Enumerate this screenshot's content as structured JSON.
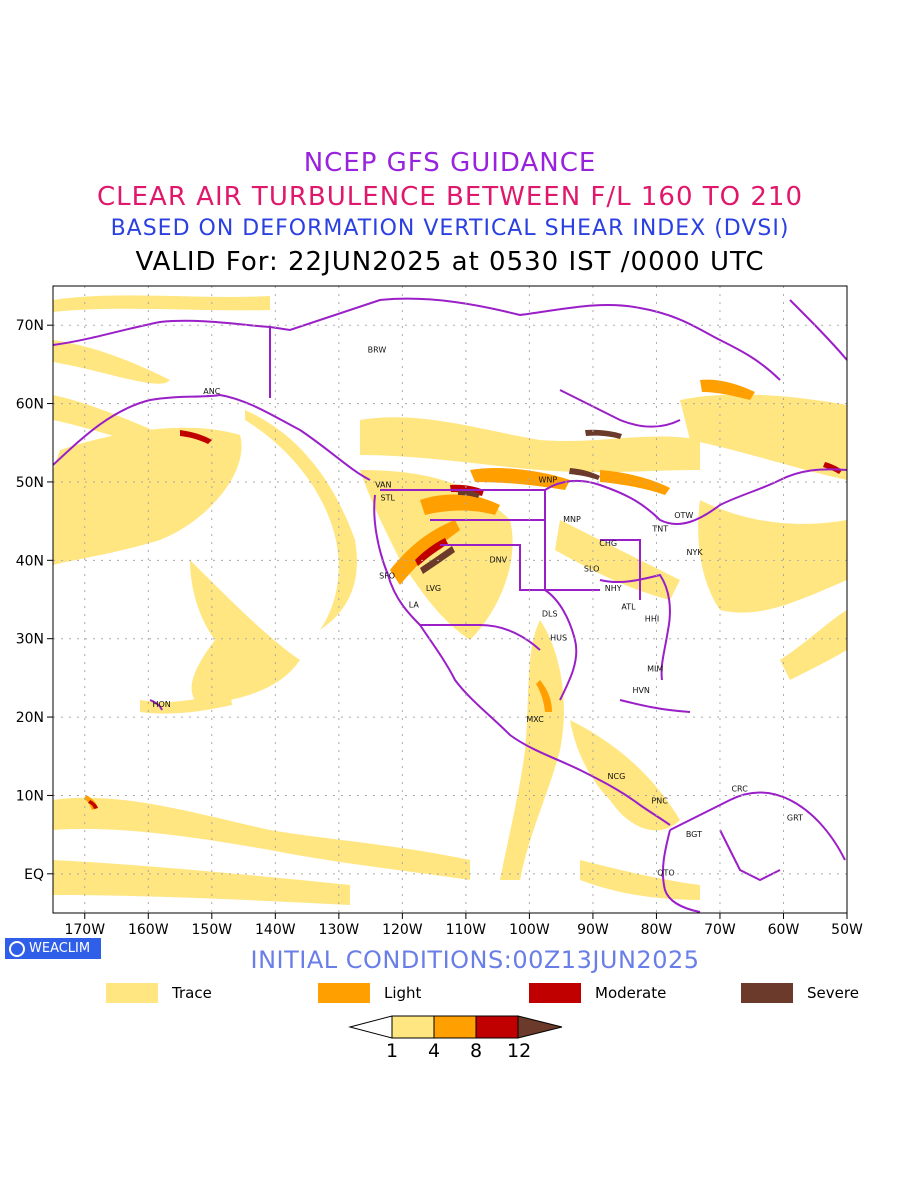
{
  "title": {
    "line1": "NCEP GFS GUIDANCE",
    "line2": "CLEAR AIR TURBULENCE BETWEEN F/L 160 TO 210",
    "line3": "BASED ON DEFORMATION VERTICAL SHEAR INDEX (DVSI)",
    "line4": "VALID For: 22JUN2025 at 0530 IST /0000 UTC"
  },
  "map": {
    "lon_range": [
      -175,
      -50
    ],
    "lat_range": [
      -5,
      75
    ],
    "lon_ticks": [
      "170W",
      "160W",
      "150W",
      "140W",
      "130W",
      "120W",
      "110W",
      "100W",
      "90W",
      "80W",
      "70W",
      "60W",
      "50W"
    ],
    "lat_ticks": [
      "EQ",
      "10N",
      "20N",
      "30N",
      "40N",
      "50N",
      "60N",
      "70N"
    ],
    "stations": [
      {
        "id": "BRW",
        "lon": -124,
        "lat": 66.5
      },
      {
        "id": "ANC",
        "lon": -150,
        "lat": 61.2
      },
      {
        "id": "VAN",
        "lon": -123,
        "lat": 49.3
      },
      {
        "id": "STL",
        "lon": -122.3,
        "lat": 47.6
      },
      {
        "id": "SFO",
        "lon": -122.4,
        "lat": 37.7
      },
      {
        "id": "LA",
        "lon": -118.2,
        "lat": 34
      },
      {
        "id": "LVG",
        "lon": -115.1,
        "lat": 36.1
      },
      {
        "id": "DNV",
        "lon": -104.9,
        "lat": 39.7
      },
      {
        "id": "WNP",
        "lon": -97.1,
        "lat": 49.9
      },
      {
        "id": "MNP",
        "lon": -93.3,
        "lat": 44.9
      },
      {
        "id": "CHG",
        "lon": -87.6,
        "lat": 41.8
      },
      {
        "id": "SLO",
        "lon": -90.2,
        "lat": 38.6
      },
      {
        "id": "NHY",
        "lon": -86.8,
        "lat": 36.1
      },
      {
        "id": "ATL",
        "lon": -84.4,
        "lat": 33.7
      },
      {
        "id": "DLS",
        "lon": -96.8,
        "lat": 32.8
      },
      {
        "id": "HUS",
        "lon": -95.4,
        "lat": 29.8
      },
      {
        "id": "HHI",
        "lon": -80.7,
        "lat": 32.2
      },
      {
        "id": "TNT",
        "lon": -79.4,
        "lat": 43.7
      },
      {
        "id": "OTW",
        "lon": -75.7,
        "lat": 45.4
      },
      {
        "id": "NYK",
        "lon": -74,
        "lat": 40.7
      },
      {
        "id": "MIM",
        "lon": -80.2,
        "lat": 25.8
      },
      {
        "id": "HVN",
        "lon": -82.4,
        "lat": 23.1
      },
      {
        "id": "MXC",
        "lon": -99.1,
        "lat": 19.4
      },
      {
        "id": "HON",
        "lon": -157.9,
        "lat": 21.3
      },
      {
        "id": "NCG",
        "lon": -86.3,
        "lat": 12.1
      },
      {
        "id": "PNC",
        "lon": -79.5,
        "lat": 9
      },
      {
        "id": "CRC",
        "lon": -66.9,
        "lat": 10.5
      },
      {
        "id": "GRT",
        "lon": -58.2,
        "lat": 6.8
      },
      {
        "id": "BGT",
        "lon": -74.1,
        "lat": 4.7
      },
      {
        "id": "QTO",
        "lon": -78.5,
        "lat": -0.2
      }
    ]
  },
  "badge": "WEACLIM",
  "initial_conditions": "INITIAL CONDITIONS:00Z13JUN2025",
  "legend": [
    {
      "label": "Trace",
      "color": "#ffe680"
    },
    {
      "label": "Light",
      "color": "#ffa000"
    },
    {
      "label": "Moderate",
      "color": "#c00000"
    },
    {
      "label": "Severe",
      "color": "#6b3a2a"
    }
  ],
  "colorbar": {
    "ticks": [
      "1",
      "4",
      "8",
      "12"
    ],
    "colors": [
      "#ffffff",
      "#ffe680",
      "#ffa000",
      "#c00000",
      "#6b3a2a"
    ]
  },
  "colors": {
    "boundary": "#9a1fc8",
    "trace": "#ffe680",
    "light": "#ffa000",
    "moderate": "#c00000",
    "severe": "#6b3a2a"
  }
}
